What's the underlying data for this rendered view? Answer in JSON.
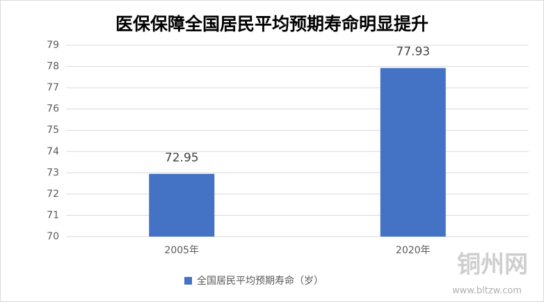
{
  "chart_data": {
    "type": "bar",
    "title": "医保保障全国居民平均预期寿命明显提升",
    "categories": [
      "2005年",
      "2020年"
    ],
    "series": [
      {
        "name": "全国居民平均预期寿命（岁）",
        "color": "#4472c4",
        "values": [
          72.95,
          77.93
        ]
      }
    ],
    "ylim": [
      70,
      79
    ],
    "yticks": [
      70,
      71,
      72,
      73,
      74,
      75,
      76,
      77,
      78,
      79
    ],
    "grid": true,
    "legend": "bottom",
    "watermark": {
      "name": "铜州网",
      "url": "www.bltzw.com"
    }
  }
}
